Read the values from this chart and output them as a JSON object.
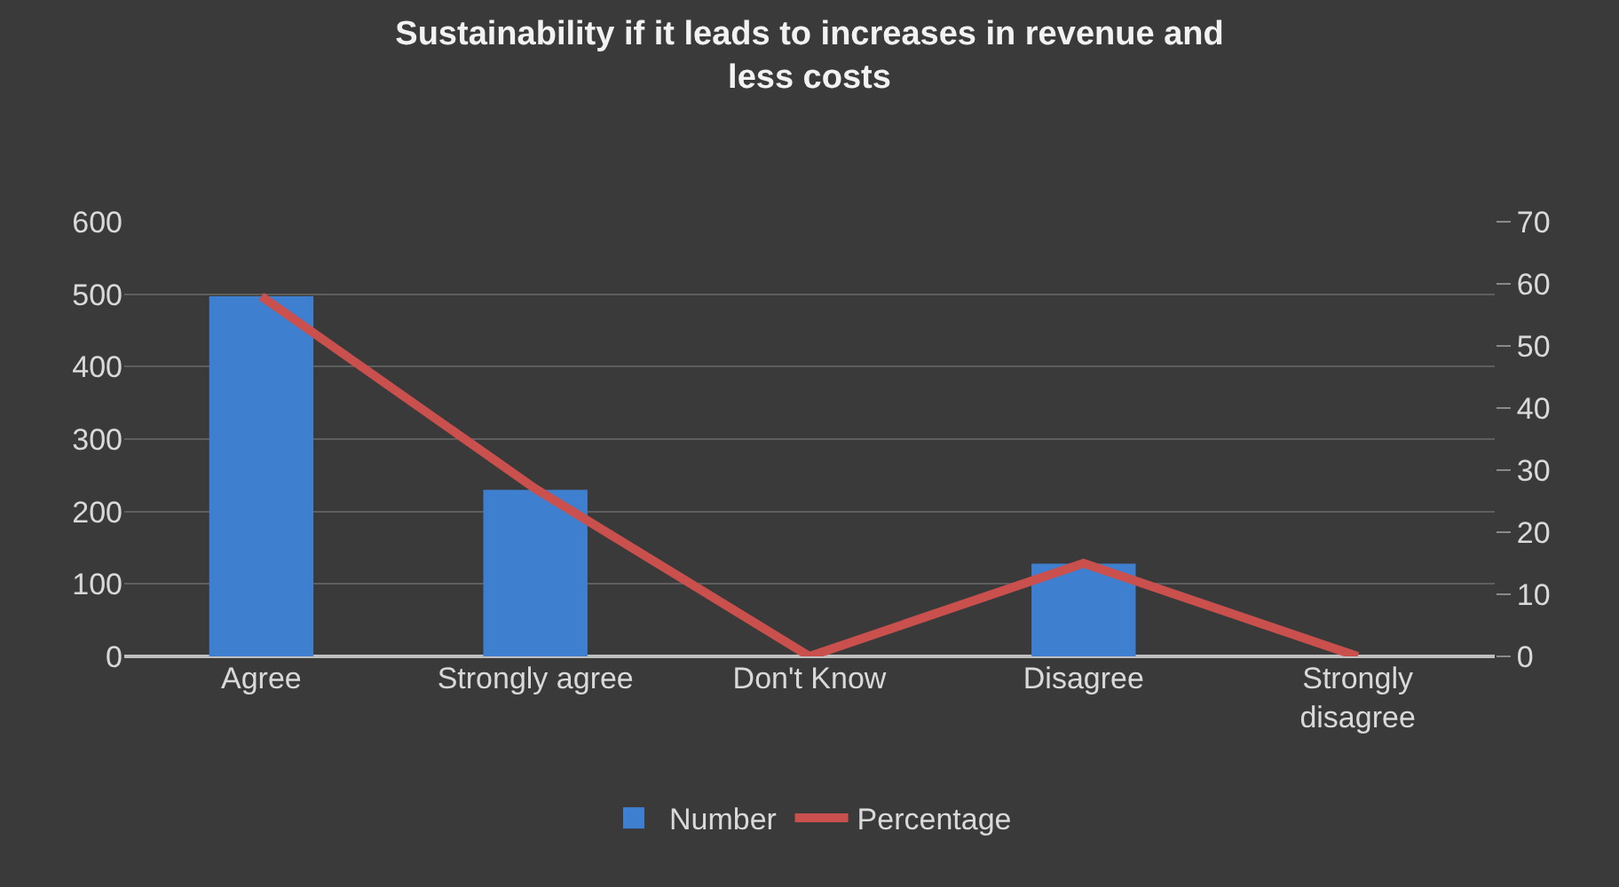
{
  "chart_data": {
    "type": "bar",
    "title": "Sustainability if it leads to increases in revenue and less costs",
    "categories": [
      "Agree",
      "Strongly agree",
      "Don't Know",
      "Disagree",
      "Strongly disagree"
    ],
    "series": [
      {
        "name": "Number",
        "color": "#3f7fd0",
        "values": [
          497,
          230,
          0,
          128,
          0
        ]
      },
      {
        "name": "Percentage",
        "type": "line",
        "color": "#c9504c",
        "axis": "y2",
        "values": [
          58,
          27,
          0,
          15,
          0
        ]
      }
    ],
    "ylim": [
      0,
      600
    ],
    "yticks": [
      0,
      100,
      200,
      300,
      400,
      500,
      600
    ],
    "y2lim": [
      0,
      70
    ],
    "y2ticks": [
      0,
      10,
      20,
      30,
      40,
      50,
      60,
      70
    ],
    "grid": "y",
    "legend": "bottom",
    "marker": "none",
    "line_style": "solid"
  }
}
